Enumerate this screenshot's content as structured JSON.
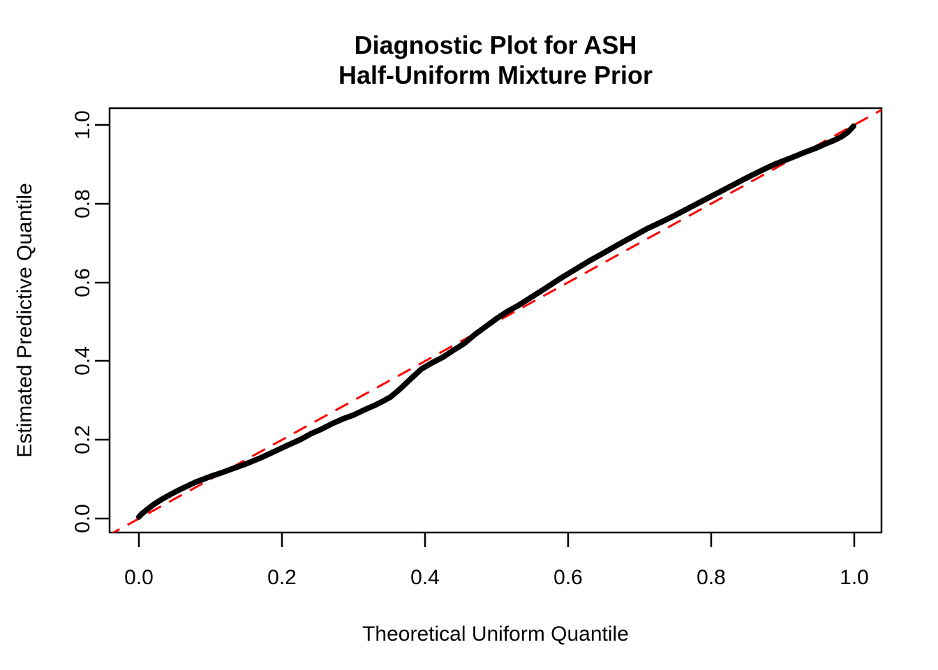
{
  "page": {
    "background_color": "#FFFFFF"
  },
  "chart_data": {
    "type": "scatter",
    "title": "Diagnostic Plot for ASH\nHalf-Uniform Mixture Prior",
    "title_lines": [
      "Diagnostic Plot for ASH",
      "Half-Uniform Mixture Prior"
    ],
    "xlabel": "Theoretical Uniform Quantile",
    "ylabel": "Estimated Predictive Quantile",
    "xlim": [
      0,
      1
    ],
    "ylim": [
      0,
      1
    ],
    "x_tick_values": [
      0.0,
      0.2,
      0.4,
      0.6,
      0.8,
      1.0
    ],
    "y_tick_values": [
      0.0,
      0.2,
      0.4,
      0.6,
      0.8,
      1.0
    ],
    "x_tick_labels": [
      "0.0",
      "0.2",
      "0.4",
      "0.6",
      "0.8",
      "1.0"
    ],
    "y_tick_labels": [
      "0.0",
      "0.2",
      "0.4",
      "0.6",
      "0.8",
      "1.0"
    ],
    "grid": false,
    "legend": "none",
    "series": [
      {
        "name": "estimated-predictive-quantiles",
        "type": "line",
        "color": "#000000",
        "line_width": 8,
        "style": "solid",
        "points": [
          [
            0.0,
            0.004
          ],
          [
            0.004,
            0.012
          ],
          [
            0.01,
            0.021
          ],
          [
            0.02,
            0.035
          ],
          [
            0.032,
            0.049
          ],
          [
            0.045,
            0.062
          ],
          [
            0.06,
            0.076
          ],
          [
            0.08,
            0.093
          ],
          [
            0.1,
            0.107
          ],
          [
            0.115,
            0.116
          ],
          [
            0.13,
            0.126
          ],
          [
            0.15,
            0.139
          ],
          [
            0.17,
            0.154
          ],
          [
            0.19,
            0.171
          ],
          [
            0.21,
            0.188
          ],
          [
            0.225,
            0.2
          ],
          [
            0.24,
            0.215
          ],
          [
            0.255,
            0.227
          ],
          [
            0.27,
            0.241
          ],
          [
            0.285,
            0.253
          ],
          [
            0.3,
            0.263
          ],
          [
            0.315,
            0.276
          ],
          [
            0.33,
            0.288
          ],
          [
            0.342,
            0.299
          ],
          [
            0.352,
            0.309
          ],
          [
            0.365,
            0.329
          ],
          [
            0.38,
            0.355
          ],
          [
            0.395,
            0.38
          ],
          [
            0.41,
            0.396
          ],
          [
            0.425,
            0.41
          ],
          [
            0.44,
            0.428
          ],
          [
            0.455,
            0.445
          ],
          [
            0.47,
            0.468
          ],
          [
            0.485,
            0.488
          ],
          [
            0.5,
            0.508
          ],
          [
            0.515,
            0.526
          ],
          [
            0.53,
            0.541
          ],
          [
            0.55,
            0.564
          ],
          [
            0.57,
            0.587
          ],
          [
            0.59,
            0.611
          ],
          [
            0.61,
            0.633
          ],
          [
            0.63,
            0.655
          ],
          [
            0.65,
            0.675
          ],
          [
            0.67,
            0.696
          ],
          [
            0.69,
            0.716
          ],
          [
            0.71,
            0.736
          ],
          [
            0.73,
            0.753
          ],
          [
            0.75,
            0.771
          ],
          [
            0.77,
            0.79
          ],
          [
            0.79,
            0.809
          ],
          [
            0.81,
            0.828
          ],
          [
            0.83,
            0.847
          ],
          [
            0.85,
            0.866
          ],
          [
            0.87,
            0.884
          ],
          [
            0.89,
            0.901
          ],
          [
            0.91,
            0.915
          ],
          [
            0.93,
            0.93
          ],
          [
            0.945,
            0.94
          ],
          [
            0.96,
            0.952
          ],
          [
            0.972,
            0.961
          ],
          [
            0.982,
            0.97
          ],
          [
            0.99,
            0.98
          ],
          [
            0.995,
            0.989
          ],
          [
            0.999,
            0.997
          ]
        ]
      },
      {
        "name": "identity-reference-line",
        "type": "line",
        "color": "#FF0000",
        "line_width": 3,
        "style": "dashed",
        "points": [
          [
            -0.045,
            -0.045
          ],
          [
            1.045,
            1.045
          ]
        ]
      }
    ]
  },
  "colors": {
    "curve": "#000000",
    "reference_line": "#FF0000",
    "axis": "#000000",
    "background": "#FFFFFF"
  }
}
